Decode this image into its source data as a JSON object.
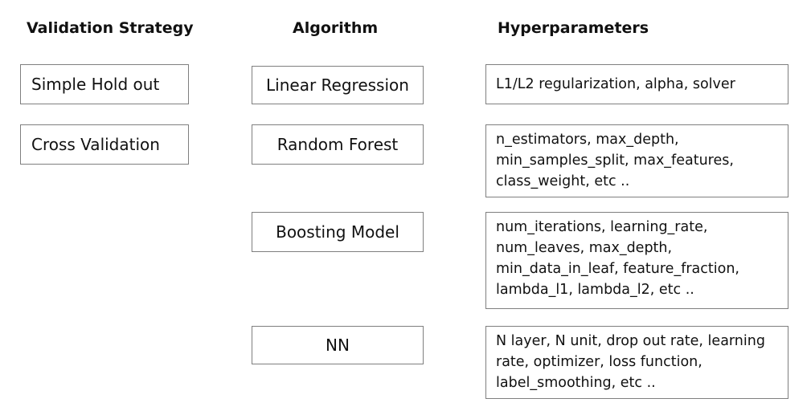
{
  "headers": {
    "validation": "Validation Strategy",
    "algorithm": "Algorithm",
    "hyperparameters": "Hyperparameters"
  },
  "validation_strategies": [
    "Simple Hold out",
    "Cross Validation"
  ],
  "algorithms": [
    "Linear Regression",
    "Random Forest",
    "Boosting Model",
    "NN"
  ],
  "hyperparameters": [
    "L1/L2 regularization, alpha, solver",
    "n_estimators, max_depth,\nmin_samples_split, max_features,\nclass_weight, etc ..",
    "num_iterations, learning_rate,\nnum_leaves, max_depth,\nmin_data_in_leaf, feature_fraction,\nlambda_l1, lambda_l2, etc ..",
    "N layer, N unit, drop out rate, learning\nrate, optimizer, loss function,\nlabel_smoothing, etc .."
  ]
}
